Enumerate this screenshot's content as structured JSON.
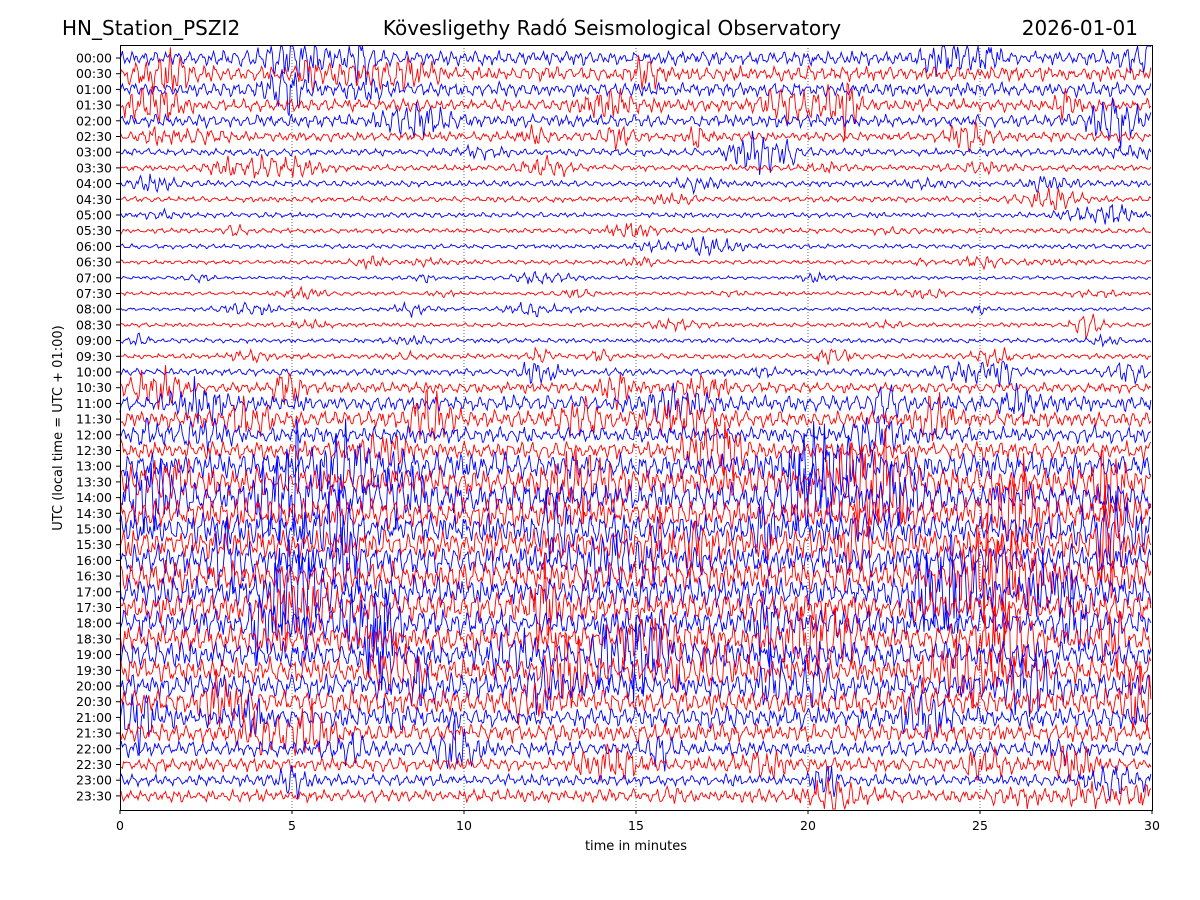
{
  "header": {
    "station": "HN_Station_PSZI2",
    "observatory": "Kövesligethy Radó Seismological Observatory",
    "date": "2026-01-01"
  },
  "chart_data": {
    "type": "line",
    "title": "Kövesligethy Radó Seismological Observatory",
    "xlabel": "time in minutes",
    "ylabel": "UTC (local time = UTC + 01:00)",
    "xlim": [
      0,
      30
    ],
    "x_ticks": [
      0,
      5,
      10,
      15,
      20,
      25,
      30
    ],
    "x_tick_labels": [
      "0",
      "5",
      "10",
      "15",
      "20",
      "25",
      "30"
    ],
    "vertical_gridlines_minutes": [
      5,
      10,
      15,
      20,
      25
    ],
    "trace_colors": [
      "#0000ff",
      "#ff0000"
    ],
    "trace_labels": [
      "00:00",
      "00:30",
      "01:00",
      "01:30",
      "02:00",
      "02:30",
      "03:00",
      "03:30",
      "04:00",
      "04:30",
      "05:00",
      "05:30",
      "06:00",
      "06:30",
      "07:00",
      "07:30",
      "08:00",
      "08:30",
      "09:00",
      "09:30",
      "10:00",
      "10:30",
      "11:00",
      "11:30",
      "12:00",
      "12:30",
      "13:00",
      "13:30",
      "14:00",
      "14:30",
      "15:00",
      "15:30",
      "16:00",
      "16:30",
      "17:00",
      "17:30",
      "18:00",
      "18:30",
      "19:00",
      "19:30",
      "20:00",
      "20:30",
      "21:00",
      "21:30",
      "22:00",
      "22:30",
      "23:00",
      "23:30"
    ],
    "relative_amplitude": [
      1.4,
      1.4,
      1.3,
      1.2,
      1.2,
      0.9,
      0.7,
      0.6,
      0.6,
      0.55,
      0.5,
      0.5,
      0.45,
      0.4,
      0.35,
      0.35,
      0.35,
      0.4,
      0.45,
      0.5,
      0.7,
      1.0,
      1.5,
      1.6,
      1.6,
      1.7,
      2.6,
      2.7,
      2.8,
      2.8,
      2.9,
      2.9,
      3.0,
      2.9,
      2.9,
      2.8,
      2.7,
      2.6,
      2.5,
      2.4,
      2.4,
      2.2,
      2.0,
      1.8,
      1.5,
      1.3,
      1.1,
      1.2
    ]
  }
}
